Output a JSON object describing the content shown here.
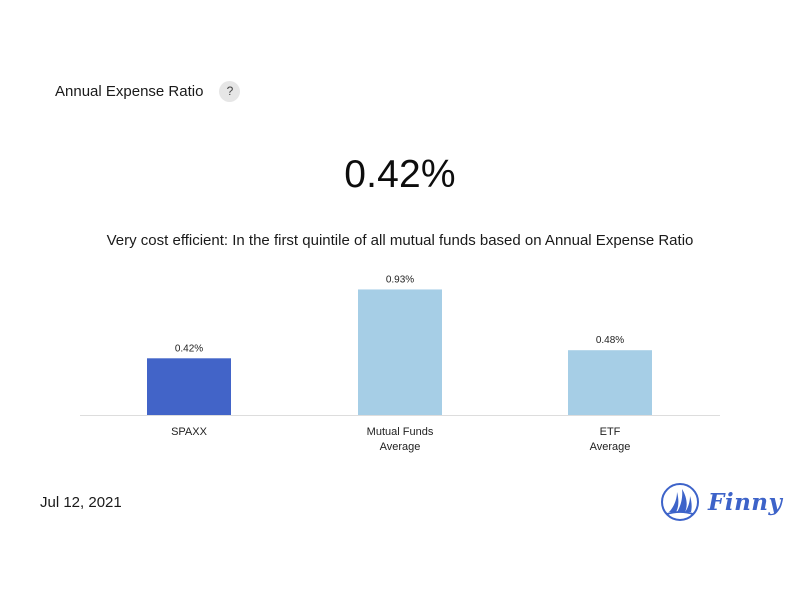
{
  "header": {
    "title": "Annual Expense Ratio",
    "help_label": "?"
  },
  "headline_value": "0.42%",
  "summary": "Very cost efficient: In the first quintile of all mutual funds based on Annual Expense Ratio",
  "date": "Jul 12, 2021",
  "brand": {
    "name": "Finny",
    "color": "#3d63c9"
  },
  "chart_data": {
    "type": "bar",
    "categories": [
      [
        "SPAXX"
      ],
      [
        "Mutual Funds",
        "Average"
      ],
      [
        "ETF",
        "Average"
      ]
    ],
    "values": [
      0.42,
      0.93,
      0.48
    ],
    "data_labels": [
      "0.42%",
      "0.93%",
      "0.48%"
    ],
    "colors": [
      "#4264c8",
      "#a6cee6",
      "#a6cee6"
    ],
    "ylim": [
      0,
      1.0
    ],
    "grid": false,
    "title": "",
    "xlabel": "",
    "ylabel": ""
  }
}
